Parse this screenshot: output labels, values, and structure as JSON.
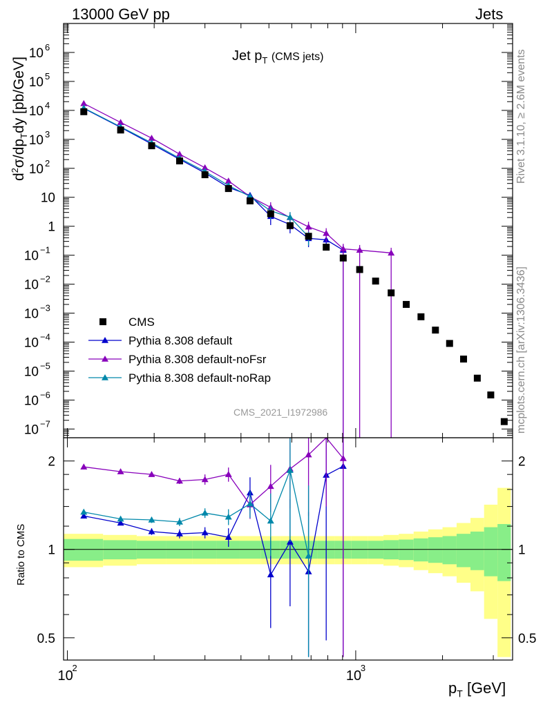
{
  "header": {
    "left": "13000 GeV pp",
    "right": "Jets"
  },
  "side_labels": {
    "rivet": "Rivet 3.1.10, ≥ 2.6M events",
    "mcplots": "mcplots.cern.ch [arXiv:1306.3436]"
  },
  "chart_data": {
    "type": "scatter",
    "title": "Jet p_T (CMS jets)",
    "title_main": "Jet p",
    "title_sub": "T",
    "title_extra": "(CMS jets)",
    "watermark": "CMS_2021_I1972986",
    "xlabel": "p_T [GeV]",
    "xlabel_main": "p",
    "xlabel_sub": "T",
    "xlabel_unit": "[GeV]",
    "ylabel": "d²σ/dp_T dy [pb/GeV]",
    "ylabel_main": "d",
    "ylabel_sup": "2",
    "ylabel_mid": "σ/dp",
    "ylabel_sub": "T",
    "ylabel_end": "dy [pb/GeV]",
    "ratio_ylabel": "Ratio to CMS",
    "xscale": "log",
    "yscale": "log",
    "xlim": [
      97,
      3500
    ],
    "ylim": [
      5e-08,
      10000000.0
    ],
    "ratio_ylim": [
      0.42,
      2.4
    ],
    "xticks": [
      {
        "v": 100,
        "base": "10",
        "exp": "2"
      },
      {
        "v": 1000,
        "base": "10",
        "exp": "3"
      }
    ],
    "yticks": [
      {
        "v": 1e-07,
        "base": "10",
        "exp": "−7"
      },
      {
        "v": 1e-06,
        "base": "10",
        "exp": "−6"
      },
      {
        "v": 1e-05,
        "base": "10",
        "exp": "−5"
      },
      {
        "v": 0.0001,
        "base": "10",
        "exp": "−4"
      },
      {
        "v": 0.001,
        "base": "10",
        "exp": "−3"
      },
      {
        "v": 0.01,
        "base": "10",
        "exp": "−2"
      },
      {
        "v": 0.1,
        "base": "10",
        "exp": "−1"
      },
      {
        "v": 1,
        "base": "1",
        "exp": ""
      },
      {
        "v": 10,
        "base": "10",
        "exp": ""
      },
      {
        "v": 100,
        "base": "10",
        "exp": "2"
      },
      {
        "v": 1000,
        "base": "10",
        "exp": "3"
      },
      {
        "v": 10000,
        "base": "10",
        "exp": "4"
      },
      {
        "v": 100000,
        "base": "10",
        "exp": "5"
      },
      {
        "v": 1000000,
        "base": "10",
        "exp": "6"
      }
    ],
    "ratio_yticks": [
      {
        "v": 0.5,
        "label": "0.5"
      },
      {
        "v": 1,
        "label": "1"
      },
      {
        "v": 2,
        "label": "2"
      }
    ],
    "legend_position": "lower-left",
    "data": {
      "name": "CMS",
      "color": "#000000",
      "x": [
        114,
        153,
        196,
        245,
        300,
        362,
        430,
        507,
        592,
        686,
        790,
        905,
        1032,
        1172,
        1327,
        1497,
        1684,
        1890,
        2116,
        2366,
        2640,
        2940,
        3273
      ],
      "y": [
        9000,
        2100,
        600,
        180,
        60,
        20,
        7.5,
        2.7,
        1.05,
        0.45,
        0.19,
        0.08,
        0.032,
        0.0128,
        0.005,
        0.002,
        0.00075,
        0.00026,
        9e-05,
        2.6e-05,
        5.7e-06,
        1.5e-06,
        1.8e-07
      ]
    },
    "bins": [
      97,
      133,
      174,
      220,
      272,
      330,
      395,
      468,
      548,
      638,
      737,
      846,
      967,
      1101,
      1248,
      1410,
      1588,
      1784,
      2000,
      2238,
      2500,
      2787,
      3103,
      3450
    ],
    "band_inner": [
      0.085,
      0.075,
      0.07,
      0.07,
      0.07,
      0.07,
      0.07,
      0.07,
      0.07,
      0.07,
      0.07,
      0.07,
      0.07,
      0.07,
      0.075,
      0.08,
      0.09,
      0.1,
      0.11,
      0.13,
      0.15,
      0.19,
      0.22
    ],
    "band_outer": [
      0.13,
      0.12,
      0.11,
      0.11,
      0.11,
      0.11,
      0.11,
      0.11,
      0.11,
      0.11,
      0.11,
      0.11,
      0.11,
      0.11,
      0.12,
      0.13,
      0.15,
      0.17,
      0.19,
      0.23,
      0.28,
      0.42,
      0.62
    ],
    "series": [
      {
        "name": "Pythia 8.308 default",
        "color": "#0000cc",
        "x": [
          114,
          153,
          196,
          245,
          300,
          362,
          430,
          507,
          592,
          686,
          790,
          905
        ],
        "y": [
          11700,
          2600,
          690,
          205,
          69,
          22,
          11.7,
          2.2,
          1.14,
          0.38,
          0.34,
          0.15
        ],
        "ratio": [
          1.3,
          1.23,
          1.15,
          1.13,
          1.14,
          1.1,
          1.56,
          0.82,
          1.06,
          0.84,
          1.79,
          1.92
        ],
        "ratio_err": [
          0.02,
          0.02,
          0.03,
          0.04,
          0.05,
          0.08,
          0.2,
          0.28,
          0.42,
          0.5,
          1.3,
          1.5
        ]
      },
      {
        "name": "Pythia 8.308 default-noFsr",
        "color": "#8800bb",
        "x": [
          114,
          153,
          196,
          245,
          300,
          362,
          430,
          507,
          592,
          686,
          790,
          905,
          1032,
          1327
        ],
        "y": [
          17300,
          3850,
          1100,
          308,
          105,
          36.5,
          10.5,
          4.5,
          2.0,
          0.95,
          0.57,
          0.165,
          0.15,
          0.12
        ],
        "ratio": [
          1.91,
          1.84,
          1.8,
          1.71,
          1.73,
          1.8,
          1.42,
          1.64,
          1.88,
          2.1,
          2.9,
          2.04
        ],
        "ratio_err": [
          0.02,
          0.02,
          0.03,
          0.04,
          0.07,
          0.1,
          0.15,
          0.3,
          0.5,
          0.8,
          1.5,
          2.0
        ]
      },
      {
        "name": "Pythia 8.308 default-noRap",
        "color": "#0088aa",
        "x": [
          114,
          153,
          196,
          245,
          300,
          362,
          430,
          507,
          592,
          686
        ],
        "y": [
          12100,
          2700,
          760,
          222,
          78,
          25.5,
          10.7,
          3.4,
          2.05,
          0.43
        ],
        "ratio": [
          1.34,
          1.27,
          1.26,
          1.24,
          1.33,
          1.29,
          1.43,
          1.25,
          1.86,
          0.95
        ],
        "ratio_err": [
          0.02,
          0.02,
          0.03,
          0.04,
          0.05,
          0.08,
          0.15,
          0.3,
          0.8,
          0.7
        ]
      }
    ]
  }
}
